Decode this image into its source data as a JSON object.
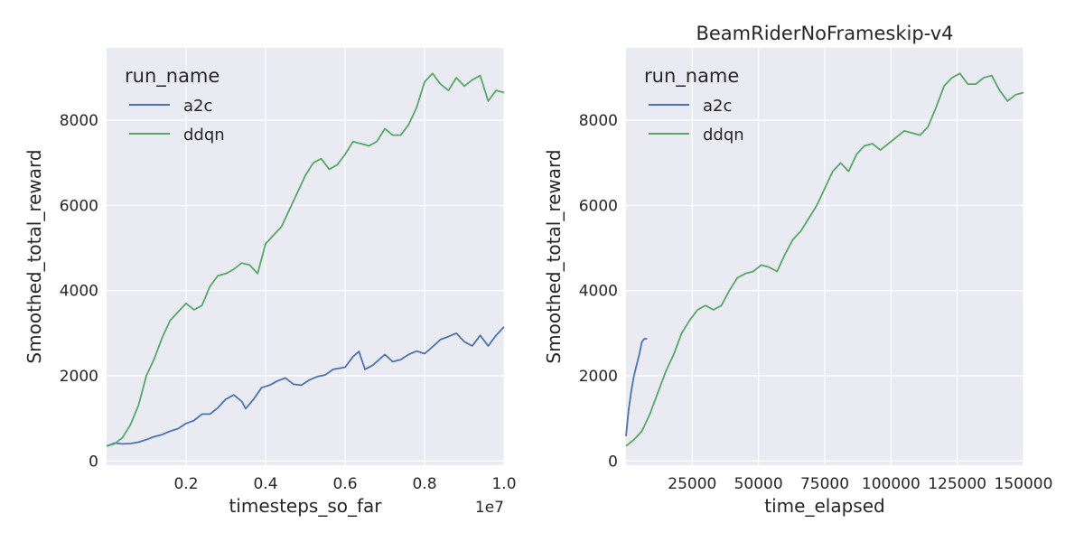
{
  "colors": {
    "a2c": "#4c72b0",
    "ddqn": "#55a868",
    "panel_bg": "#eaeaf2",
    "grid": "#ffffff",
    "text": "#262626"
  },
  "chart_data": [
    {
      "type": "line",
      "title": "",
      "xlabel": "timesteps_so_far",
      "ylabel": "Smoothed_total_reward",
      "offset_text": "1e7",
      "xlim": [
        0.0,
        1.0
      ],
      "ylim": [
        -100,
        9700
      ],
      "xticks": [
        0.2,
        0.4,
        0.6,
        0.8,
        1.0
      ],
      "xtick_labels": [
        "0.2",
        "0.4",
        "0.6",
        "0.8",
        "1.0"
      ],
      "yticks": [
        0,
        2000,
        4000,
        6000,
        8000
      ],
      "ytick_labels": [
        "0",
        "2000",
        "4000",
        "6000",
        "8000"
      ],
      "grid": true,
      "legend": {
        "title": "run_name",
        "placement": "top-left"
      },
      "series": [
        {
          "name": "a2c",
          "color": "#4c72b0",
          "x": [
            0.0,
            0.02,
            0.04,
            0.06,
            0.08,
            0.1,
            0.12,
            0.14,
            0.16,
            0.18,
            0.2,
            0.22,
            0.24,
            0.26,
            0.28,
            0.3,
            0.32,
            0.34,
            0.35,
            0.37,
            0.39,
            0.41,
            0.43,
            0.45,
            0.47,
            0.49,
            0.51,
            0.53,
            0.55,
            0.57,
            0.6,
            0.62,
            0.635,
            0.65,
            0.67,
            0.7,
            0.72,
            0.74,
            0.76,
            0.78,
            0.8,
            0.82,
            0.84,
            0.86,
            0.88,
            0.9,
            0.92,
            0.94,
            0.96,
            0.98,
            1.0
          ],
          "y": [
            350,
            420,
            400,
            410,
            440,
            500,
            570,
            620,
            700,
            760,
            880,
            950,
            1100,
            1100,
            1250,
            1450,
            1550,
            1400,
            1230,
            1450,
            1720,
            1780,
            1880,
            1950,
            1800,
            1780,
            1900,
            1980,
            2020,
            2150,
            2200,
            2450,
            2570,
            2150,
            2250,
            2500,
            2330,
            2380,
            2500,
            2580,
            2520,
            2680,
            2850,
            2920,
            3000,
            2800,
            2700,
            2950,
            2700,
            2950,
            3150
          ]
        },
        {
          "name": "ddqn",
          "color": "#55a868",
          "x": [
            0.0,
            0.02,
            0.04,
            0.06,
            0.08,
            0.1,
            0.12,
            0.14,
            0.16,
            0.18,
            0.2,
            0.22,
            0.24,
            0.26,
            0.28,
            0.3,
            0.32,
            0.34,
            0.36,
            0.38,
            0.4,
            0.42,
            0.44,
            0.46,
            0.48,
            0.5,
            0.52,
            0.54,
            0.56,
            0.58,
            0.6,
            0.62,
            0.64,
            0.66,
            0.68,
            0.7,
            0.72,
            0.74,
            0.76,
            0.78,
            0.8,
            0.82,
            0.84,
            0.86,
            0.88,
            0.9,
            0.92,
            0.94,
            0.96,
            0.98,
            1.0
          ],
          "y": [
            350,
            400,
            550,
            850,
            1300,
            2000,
            2400,
            2900,
            3300,
            3500,
            3700,
            3550,
            3650,
            4100,
            4350,
            4400,
            4500,
            4650,
            4600,
            4400,
            5100,
            5300,
            5500,
            5900,
            6300,
            6700,
            7000,
            7100,
            6850,
            6950,
            7200,
            7500,
            7450,
            7400,
            7500,
            7800,
            7650,
            7650,
            7900,
            8300,
            8900,
            9100,
            8850,
            8700,
            9000,
            8800,
            8950,
            9050,
            8450,
            8700,
            8650
          ]
        }
      ]
    },
    {
      "type": "line",
      "title": "BeamRiderNoFrameskip-v4",
      "xlabel": "time_elapsed",
      "ylabel": "Smoothed_total_reward",
      "xlim": [
        0,
        150000
      ],
      "ylim": [
        -100,
        9700
      ],
      "xticks": [
        25000,
        50000,
        75000,
        100000,
        125000,
        150000
      ],
      "xtick_labels": [
        "25000",
        "50000",
        "75000",
        "100000",
        "125000",
        "150000"
      ],
      "yticks": [
        0,
        2000,
        4000,
        6000,
        8000
      ],
      "ytick_labels": [
        "0",
        "2000",
        "4000",
        "6000",
        "8000"
      ],
      "grid": true,
      "legend": {
        "title": "run_name",
        "placement": "top-left"
      },
      "series": [
        {
          "name": "a2c",
          "color": "#4c72b0",
          "x": [
            0,
            1000,
            2000,
            3000,
            4000,
            5000,
            6000,
            7000,
            8000
          ],
          "y": [
            580,
            1200,
            1650,
            2000,
            2250,
            2500,
            2800,
            2870,
            2870
          ]
        },
        {
          "name": "ddqn",
          "color": "#55a868",
          "x": [
            0,
            3000,
            6000,
            9000,
            12000,
            15000,
            18000,
            21000,
            24000,
            27000,
            30000,
            33000,
            36000,
            39000,
            42000,
            45000,
            48000,
            51000,
            54000,
            57000,
            60000,
            63000,
            66000,
            69000,
            72000,
            75000,
            78000,
            81000,
            84000,
            87000,
            90000,
            93000,
            96000,
            99000,
            102000,
            105000,
            108000,
            111000,
            114000,
            117000,
            120000,
            123000,
            126000,
            129000,
            132000,
            135000,
            138000,
            141000,
            144000,
            147000,
            150000
          ],
          "y": [
            350,
            500,
            700,
            1100,
            1600,
            2100,
            2500,
            3000,
            3300,
            3550,
            3650,
            3550,
            3650,
            4000,
            4300,
            4400,
            4450,
            4600,
            4550,
            4450,
            4850,
            5200,
            5400,
            5700,
            6000,
            6400,
            6800,
            7000,
            6800,
            7200,
            7400,
            7450,
            7300,
            7450,
            7600,
            7750,
            7700,
            7650,
            7850,
            8300,
            8800,
            9000,
            9100,
            8850,
            8850,
            9000,
            9050,
            8700,
            8450,
            8600,
            8650
          ]
        }
      ]
    }
  ]
}
